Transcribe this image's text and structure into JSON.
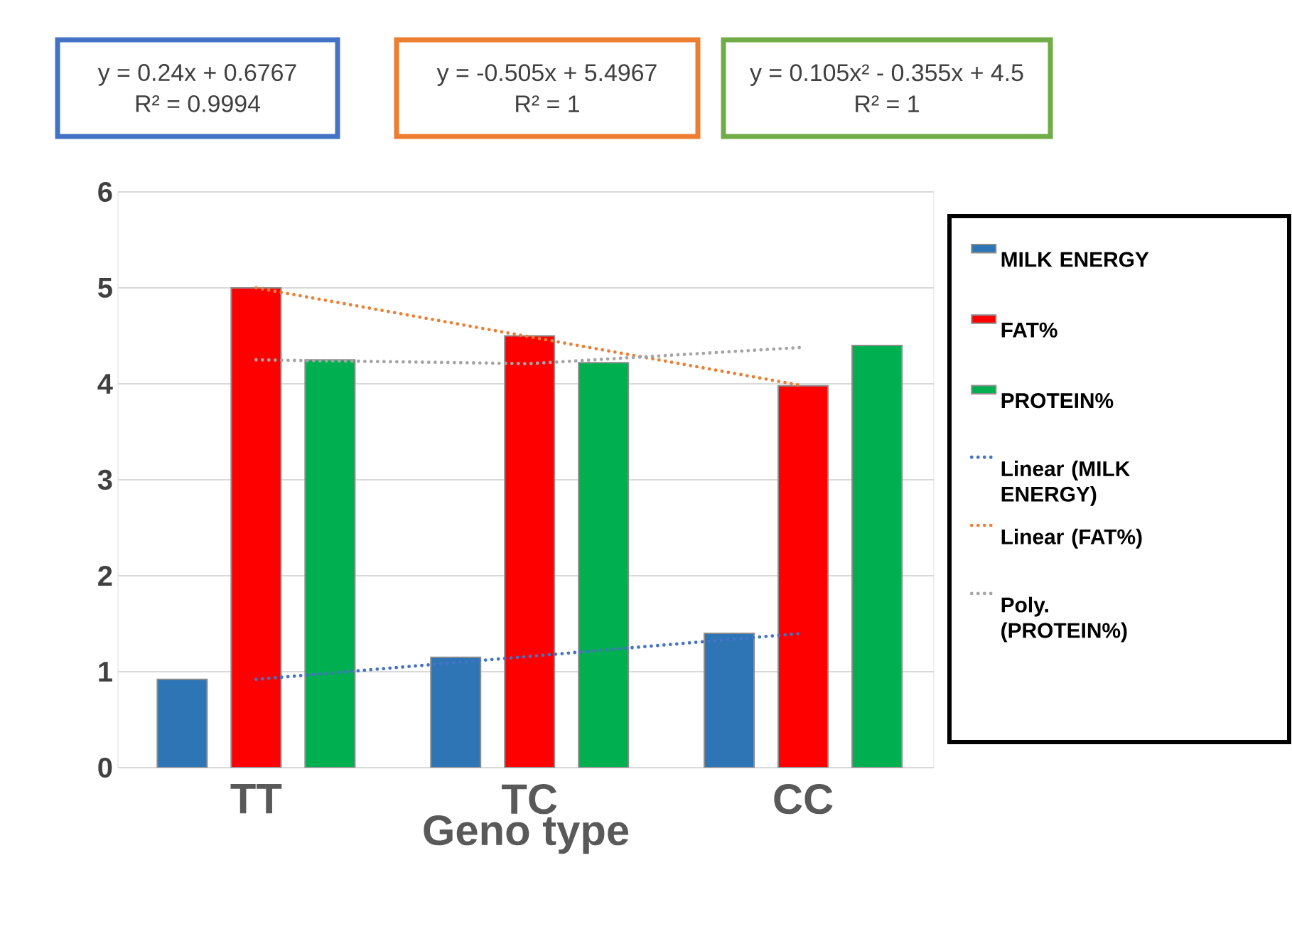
{
  "chart_data": {
    "type": "bar",
    "xlabel": "Geno type",
    "categories": [
      "TT",
      "TC",
      "CC"
    ],
    "series": [
      {
        "name": "MILK ENERGY",
        "type": "bar",
        "color": "#2e75b6",
        "values": [
          0.92,
          1.15,
          1.4
        ]
      },
      {
        "name": "FAT%",
        "type": "bar",
        "color": "#ff0000",
        "values": [
          5.0,
          4.5,
          3.98
        ]
      },
      {
        "name": "PROTEIN%",
        "type": "bar",
        "color": "#00b050",
        "values": [
          4.25,
          4.22,
          4.4
        ]
      },
      {
        "name": "Linear (MILK ENERGY)",
        "type": "line",
        "color": "#4472c4",
        "line_style": "dotted",
        "values": [
          0.92,
          1.16,
          1.4
        ]
      },
      {
        "name": "Linear (FAT%)",
        "type": "line",
        "color": "#ed7d31",
        "line_style": "dotted",
        "values": [
          5.0,
          4.49,
          3.98
        ]
      },
      {
        "name": "Poly. (PROTEIN%)",
        "type": "line",
        "color": "#a5a5a5",
        "line_style": "dotted",
        "values": [
          4.25,
          4.21,
          4.38
        ]
      }
    ],
    "ylim": [
      0,
      6
    ],
    "yticks": [
      0,
      1,
      2,
      3,
      4,
      5,
      6
    ],
    "grid": "y",
    "legend": "right",
    "annotations": [
      "y = 0.24x + 0.6767",
      "R² = 0.9994",
      "y = -0.505x + 5.4967",
      "R² = 1",
      "y = 0.105x² - 0.355x + 4.5",
      "R² = 1"
    ]
  }
}
